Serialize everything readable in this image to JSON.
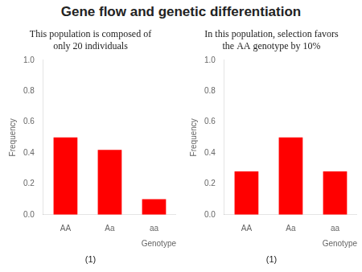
{
  "title": "Gene flow and genetic differentiation",
  "chart_data": [
    {
      "type": "bar",
      "subtitle": "This population is composed of\nonly 20 individuals",
      "categories": [
        "AA",
        "Aa",
        "aa"
      ],
      "values": [
        0.5,
        0.42,
        0.1
      ],
      "color": "#ff0000",
      "ylabel": "Frequency",
      "xlabel": "Genotype",
      "annotation": "(1)",
      "ylim": [
        0,
        1.0
      ],
      "yticks": [
        {
          "value": 0,
          "label": "0.0"
        },
        0.2,
        0.4,
        0.6,
        0.8,
        {
          "value": 1,
          "label": "1.0"
        }
      ],
      "grid": false
    },
    {
      "type": "bar",
      "subtitle": "In this population, selection favors\nthe AA genotype by 10%",
      "categories": [
        "AA",
        "Aa",
        "aa"
      ],
      "values": [
        0.28,
        0.5,
        0.28
      ],
      "color": "#ff0000",
      "ylabel": "Frequency",
      "xlabel": "Genotype",
      "annotation": "(1)",
      "ylim": [
        0,
        1.0
      ],
      "yticks": [
        {
          "value": 0,
          "label": "0.0"
        },
        0.2,
        0.4,
        0.6,
        0.8,
        {
          "value": 1,
          "label": "1.0"
        }
      ],
      "grid": false
    }
  ]
}
